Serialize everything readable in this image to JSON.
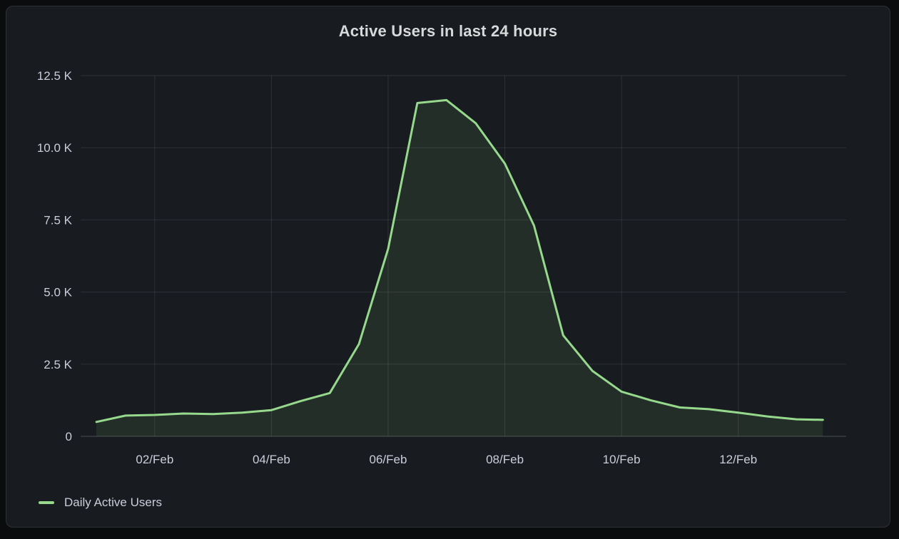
{
  "panel": {
    "title": "Active Users in last 24 hours"
  },
  "legend": {
    "items": [
      {
        "label": "Daily Active Users",
        "color": "#96d98d"
      }
    ]
  },
  "chart_data": {
    "type": "area",
    "title": "Active Users in last 24 hours",
    "xlabel": "",
    "ylabel": "",
    "unit": "K",
    "x_unit": "day of February",
    "series": [
      {
        "name": "Daily Active Users",
        "color": "#96d98d",
        "fill": "rgba(150,217,141,0.10)",
        "x": [
          1.0,
          1.5,
          2.0,
          2.5,
          3.0,
          3.5,
          4.0,
          4.5,
          5.0,
          5.5,
          6.0,
          6.5,
          7.0,
          7.5,
          8.0,
          8.5,
          9.0,
          9.5,
          10.0,
          10.5,
          11.0,
          11.5,
          12.0,
          12.5,
          13.0,
          13.45
        ],
        "values": [
          0.5,
          0.72,
          0.74,
          0.79,
          0.77,
          0.82,
          0.91,
          1.22,
          1.5,
          3.2,
          6.5,
          11.55,
          11.65,
          10.85,
          9.45,
          7.3,
          3.5,
          2.27,
          1.55,
          1.25,
          1.0,
          0.94,
          0.82,
          0.69,
          0.59,
          0.57
        ]
      }
    ],
    "x_ticks": [
      {
        "day": 2,
        "label": "02/Feb"
      },
      {
        "day": 4,
        "label": "04/Feb"
      },
      {
        "day": 6,
        "label": "06/Feb"
      },
      {
        "day": 8,
        "label": "08/Feb"
      },
      {
        "day": 10,
        "label": "10/Feb"
      },
      {
        "day": 12,
        "label": "12/Feb"
      }
    ],
    "y_ticks": [
      {
        "value": 0,
        "label": "0"
      },
      {
        "value": 2.5,
        "label": "2.5 K"
      },
      {
        "value": 5,
        "label": "5.0 K"
      },
      {
        "value": 7.5,
        "label": "7.5 K"
      },
      {
        "value": 10,
        "label": "10.0 K"
      },
      {
        "value": 12.5,
        "label": "12.5 K"
      }
    ],
    "ylim": [
      0,
      12.5
    ],
    "xlim": [
      0.73,
      13.85
    ],
    "grid": true,
    "legend_position": "bottom-left"
  },
  "colors": {
    "canvas_bg": "#0b0c0e",
    "panel_bg": "#181b1f",
    "panel_border": "#2e2f34",
    "title_text": "#d8d9da",
    "axis_text": "#ccccdc",
    "gridline": "rgba(204,204,220,0.12)",
    "axis_line": "rgba(204,204,220,0.28)",
    "series_line": "#96d98d",
    "series_fill": "rgba(150,217,141,0.10)"
  }
}
